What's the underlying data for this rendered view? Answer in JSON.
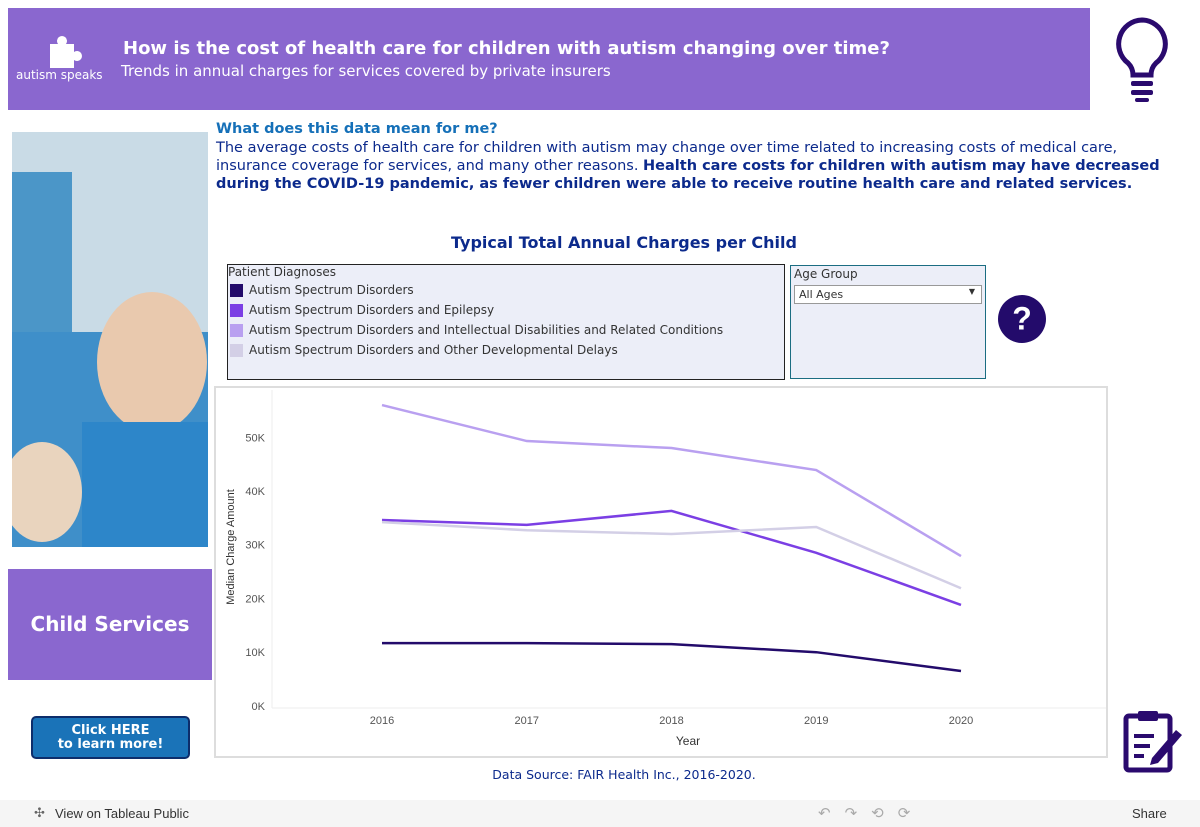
{
  "header": {
    "logo": "autism speaks",
    "title": "How is the cost of health care for children with autism changing over time?",
    "subtitle": "Trends in annual charges for services covered by private insurers"
  },
  "intro": {
    "heading": "What does this data mean for me?",
    "text": "The average costs of health care for children with autism may change over time related to increasing costs of medical care, insurance coverage for services, and many other reasons.",
    "bold_text": "Health care costs for children with autism may have decreased during the COVID-19 pandemic, as fewer children were able to receive routine health care and related services."
  },
  "sidebar": {
    "section": "Child Services",
    "button_line1": "Click HERE",
    "button_line2": "to learn more!"
  },
  "legend_title": "Patient Diagnoses",
  "filter": {
    "label": "Age Group",
    "value": "All Ages"
  },
  "source": "Data Source: FAIR Health Inc., 2016-2020.",
  "toolbar": {
    "view": "View on Tableau Public",
    "share": "Share"
  },
  "chart_data": {
    "type": "line",
    "title": "Typical Total Annual Charges per Child",
    "x_label": "Year",
    "y_label": "Median Charge Amount",
    "categories": [
      "2016",
      "2017",
      "2018",
      "2019",
      "2020"
    ],
    "series": [
      {
        "name": "Autism Spectrum Disorders",
        "color": "#230b6b",
        "values": [
          11900,
          11900,
          11700,
          10200,
          6700
        ]
      },
      {
        "name": "Autism Spectrum Disorders and Epilepsy",
        "color": "#7b3fe4",
        "values": [
          34800,
          33900,
          36500,
          28700,
          19000
        ]
      },
      {
        "name": "Autism Spectrum Disorders and Intellectual Disabilities and Related Conditions",
        "color": "#b9a0f0",
        "values": [
          56200,
          49500,
          48200,
          44100,
          28100
        ]
      },
      {
        "name": "Autism Spectrum Disorders and Other Developmental Delays",
        "color": "#d3cfe6",
        "values": [
          34400,
          32900,
          32200,
          33500,
          22100
        ]
      }
    ],
    "ylim": [
      0,
      59000
    ],
    "yticks": [
      {
        "value": 0,
        "label": "0K"
      },
      {
        "value": 10000,
        "label": "10K"
      },
      {
        "value": 20000,
        "label": "20K"
      },
      {
        "value": 30000,
        "label": "30K"
      },
      {
        "value": 40000,
        "label": "40K"
      },
      {
        "value": 50000,
        "label": "50K"
      }
    ],
    "grid": false
  }
}
